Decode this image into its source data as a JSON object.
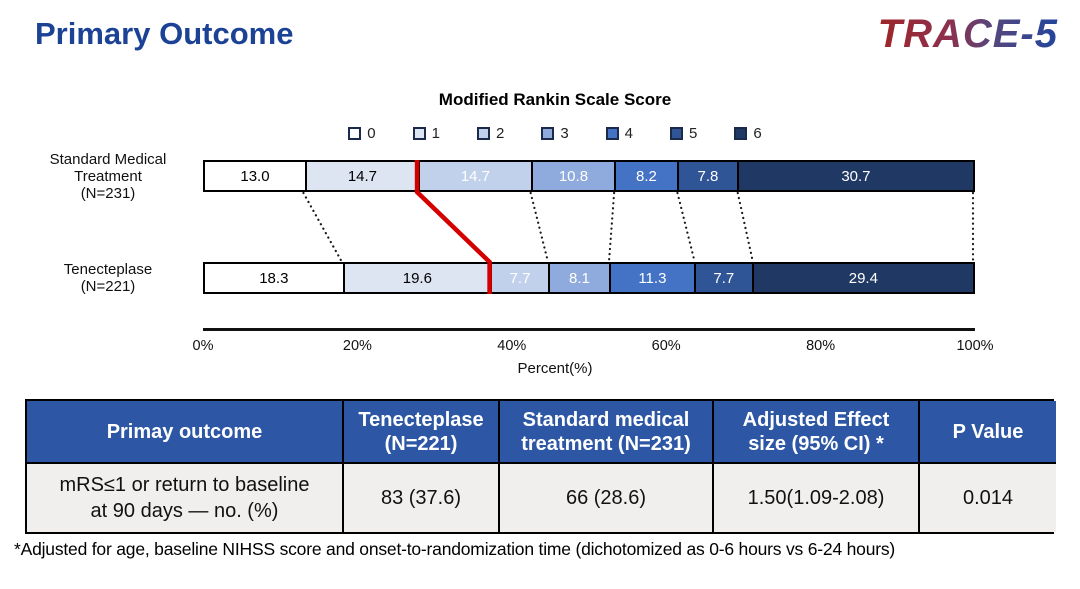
{
  "header": {
    "title": "Primary Outcome",
    "logo": "TRACE-5"
  },
  "chart_data": {
    "type": "bar",
    "orientation": "horizontal-stacked",
    "title": "Modified Rankin Scale Score",
    "legend_labels": [
      "0",
      "1",
      "2",
      "3",
      "4",
      "5",
      "6"
    ],
    "colors": [
      "#ffffff",
      "#dde5f2",
      "#c1d0eb",
      "#8faadc",
      "#4472c4",
      "#2f5597",
      "#1f3864"
    ],
    "rows": [
      {
        "label_lines": [
          "Standard Medical",
          "Treatment",
          "(N=231)"
        ],
        "values": [
          13.0,
          14.7,
          14.7,
          10.8,
          8.2,
          7.8,
          30.7
        ]
      },
      {
        "label_lines": [
          "Tenecteplase",
          "(N=221)"
        ],
        "values": [
          18.3,
          19.6,
          7.7,
          8.1,
          11.3,
          7.7,
          29.4
        ]
      }
    ],
    "x_ticks": [
      "0%",
      "20%",
      "40%",
      "60%",
      "80%",
      "100%"
    ],
    "xlabel": "Percent(%)",
    "xlim": [
      0,
      100
    ],
    "red_threshold_after_series_index": 1,
    "red_line_color": "#d40000",
    "dotted_line_color": "#1a1a1a",
    "white_text_from_series_index": 2
  },
  "table": {
    "headers": [
      [
        "Primay outcome"
      ],
      [
        "Tenecteplase",
        "(N=221)"
      ],
      [
        "Standard medical",
        "treatment (N=231)"
      ],
      [
        "Adjusted Effect",
        "size (95% CI) *"
      ],
      [
        "P Value"
      ]
    ],
    "row": [
      [
        "mRS≤1 or  return to baseline",
        "at 90 days — no. (%)"
      ],
      "83 (37.6)",
      "66 (28.6)",
      "1.50(1.09-2.08)",
      "0.014"
    ]
  },
  "footnote": "*Adjusted for age, baseline NIHSS score and onset-to-randomization time (dichotomized as 0-6 hours vs 6-24 hours)"
}
